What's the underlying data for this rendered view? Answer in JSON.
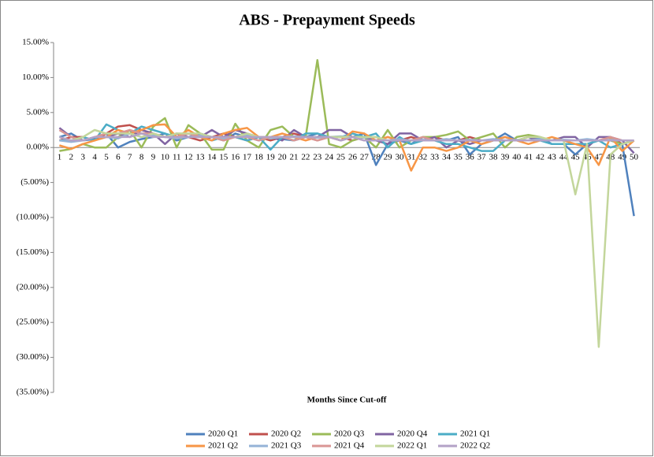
{
  "chart_data": {
    "type": "line",
    "title": "ABS - Prepayment Speeds",
    "x_label": "Months Since Cut-off",
    "categories": [
      1,
      2,
      3,
      4,
      5,
      6,
      7,
      8,
      9,
      10,
      11,
      12,
      13,
      14,
      15,
      16,
      17,
      18,
      19,
      20,
      21,
      22,
      23,
      24,
      25,
      26,
      27,
      28,
      29,
      30,
      31,
      32,
      33,
      34,
      35,
      36,
      37,
      38,
      39,
      40,
      41,
      42,
      43,
      44,
      45,
      46,
      47,
      48,
      49,
      50
    ],
    "ylim": [
      -35,
      15
    ],
    "yticks": [
      {
        "value": 15,
        "label": "15.00%"
      },
      {
        "value": 10,
        "label": "10.00%"
      },
      {
        "value": 5,
        "label": "5.00%"
      },
      {
        "value": 0,
        "label": "0.00%"
      },
      {
        "value": -5,
        "label": "(5.00%)"
      },
      {
        "value": -10,
        "label": "(10.00%)"
      },
      {
        "value": -15,
        "label": "(15.00%)"
      },
      {
        "value": -20,
        "label": "(20.00%)"
      },
      {
        "value": -25,
        "label": "(25.00%)"
      },
      {
        "value": -30,
        "label": "(30.00%)"
      },
      {
        "value": -35,
        "label": "(35.00%)"
      }
    ],
    "grid": false,
    "legend": "bottom",
    "series": [
      {
        "name": "2020 Q1",
        "color": "#4f81bd",
        "values": [
          1.5,
          2.0,
          1.0,
          1.2,
          2.0,
          0.0,
          0.8,
          1.2,
          1.5,
          2.0,
          1.0,
          1.5,
          2.0,
          1.5,
          1.0,
          2.0,
          1.5,
          1.0,
          1.5,
          1.2,
          1.0,
          1.5,
          2.0,
          1.5,
          1.0,
          1.5,
          2.0,
          -2.5,
          0.5,
          1.0,
          0.5,
          1.5,
          1.0,
          1.0,
          1.5,
          -1.0,
          0.5,
          1.0,
          2.0,
          1.0,
          1.0,
          1.5,
          0.5,
          0.5,
          -1.0,
          0.5,
          1.0,
          1.0,
          0.5,
          -9.8
        ]
      },
      {
        "name": "2020 Q2",
        "color": "#c0504d",
        "values": [
          1.0,
          1.5,
          1.5,
          1.0,
          2.0,
          3.0,
          3.2,
          2.5,
          2.0,
          1.5,
          2.0,
          1.5,
          1.0,
          1.5,
          2.0,
          1.5,
          1.0,
          1.5,
          1.0,
          1.5,
          2.0,
          1.5,
          1.0,
          1.5,
          1.5,
          1.0,
          1.5,
          1.0,
          1.5,
          1.0,
          1.5,
          1.0,
          1.5,
          1.0,
          1.0,
          1.5,
          1.0,
          1.0,
          1.5,
          1.0,
          1.5,
          1.0,
          1.0,
          1.0,
          1.0,
          1.0,
          1.0,
          1.5,
          0.5,
          1.0
        ]
      },
      {
        "name": "2020 Q3",
        "color": "#9bbb59",
        "values": [
          -0.5,
          -0.2,
          0.5,
          0.0,
          0.0,
          1.5,
          2.5,
          0.0,
          3.0,
          4.2,
          0.0,
          3.2,
          2.0,
          -0.3,
          -0.3,
          3.4,
          1.0,
          0.0,
          2.5,
          3.0,
          1.5,
          1.5,
          12.5,
          0.5,
          0.0,
          1.0,
          1.5,
          0.0,
          2.5,
          0.0,
          1.0,
          1.5,
          1.5,
          1.8,
          2.3,
          1.0,
          1.5,
          2.0,
          0.0,
          1.5,
          1.8,
          1.5,
          1.0,
          1.0,
          1.0,
          1.0,
          1.0,
          1.0,
          0.5,
          1.0
        ]
      },
      {
        "name": "2020 Q4",
        "color": "#8064a2",
        "values": [
          2.8,
          1.5,
          1.0,
          1.5,
          1.5,
          2.0,
          1.5,
          2.5,
          2.0,
          0.5,
          2.0,
          1.5,
          1.5,
          2.5,
          1.5,
          2.5,
          2.0,
          1.5,
          1.5,
          1.0,
          2.5,
          1.5,
          1.5,
          2.5,
          2.5,
          1.5,
          1.5,
          1.0,
          0.5,
          2.0,
          2.0,
          1.0,
          1.5,
          0.0,
          1.0,
          0.5,
          1.0,
          1.0,
          1.5,
          1.0,
          1.5,
          1.0,
          1.0,
          1.5,
          1.5,
          0.0,
          1.5,
          1.5,
          1.0,
          -0.8
        ]
      },
      {
        "name": "2021 Q1",
        "color": "#4bacc6",
        "values": [
          1.0,
          1.0,
          1.5,
          1.0,
          3.3,
          2.5,
          2.0,
          3.0,
          2.5,
          2.0,
          1.5,
          2.0,
          1.5,
          1.0,
          1.5,
          1.5,
          1.0,
          1.5,
          -0.3,
          1.5,
          1.0,
          2.0,
          2.0,
          1.5,
          1.5,
          2.0,
          1.5,
          2.0,
          0.0,
          1.5,
          0.5,
          1.0,
          1.0,
          0.5,
          0.5,
          0.0,
          -0.5,
          -0.5,
          1.0,
          1.0,
          1.0,
          1.0,
          0.5,
          0.5,
          0.5,
          0.5,
          1.0,
          0.0,
          0.5,
          1.0
        ]
      },
      {
        "name": "2021 Q2",
        "color": "#f79646",
        "values": [
          0.3,
          -0.2,
          0.5,
          1.0,
          1.5,
          2.5,
          2.0,
          2.5,
          3.2,
          3.3,
          1.5,
          2.5,
          1.5,
          1.0,
          2.0,
          2.5,
          2.8,
          1.5,
          1.5,
          2.0,
          1.5,
          1.0,
          1.5,
          1.5,
          1.0,
          2.3,
          2.0,
          1.0,
          1.5,
          1.0,
          -3.3,
          0.0,
          0.0,
          -0.5,
          0.0,
          1.0,
          0.5,
          1.0,
          1.5,
          1.0,
          0.5,
          1.0,
          1.5,
          1.0,
          0.5,
          0.0,
          -2.5,
          1.5,
          -0.5,
          1.0
        ]
      },
      {
        "name": "2021 Q3",
        "color": "#95b3d7",
        "values": [
          1.0,
          0.8,
          1.0,
          1.5,
          1.5,
          1.3,
          2.0,
          1.5,
          1.7,
          1.5,
          1.3,
          1.5,
          1.7,
          1.5,
          1.3,
          1.5,
          1.7,
          1.5,
          1.3,
          1.5,
          1.6,
          1.5,
          1.4,
          1.5,
          1.6,
          1.5,
          1.4,
          1.5,
          1.0,
          1.2,
          1.0,
          1.1,
          1.0,
          1.2,
          1.0,
          1.1,
          1.0,
          1.2,
          1.0,
          1.1,
          1.0,
          1.2,
          1.0,
          1.1,
          1.0,
          1.2,
          1.0,
          1.1,
          1.0,
          1.0
        ]
      },
      {
        "name": "2021 Q4",
        "color": "#d99694",
        "values": [
          2.5,
          1.5,
          1.0,
          1.5,
          2.0,
          2.0,
          2.5,
          2.0,
          2.0,
          1.5,
          1.5,
          2.0,
          1.5,
          1.5,
          1.0,
          1.5,
          1.5,
          1.0,
          1.5,
          1.5,
          1.0,
          1.5,
          1.0,
          1.5,
          1.0,
          1.5,
          1.0,
          1.0,
          1.0,
          1.0,
          1.0,
          1.5,
          1.0,
          1.0,
          1.0,
          1.0,
          1.0,
          1.0,
          1.0,
          1.0,
          1.0,
          1.0,
          1.0,
          1.0,
          1.0,
          1.0,
          1.0,
          1.5,
          1.0,
          1.0
        ]
      },
      {
        "name": "2022 Q1",
        "color": "#c3d69b",
        "values": [
          1.5,
          1.0,
          1.5,
          2.5,
          2.0,
          2.0,
          2.0,
          1.5,
          2.0,
          1.5,
          2.0,
          2.0,
          2.0,
          1.5,
          1.5,
          1.5,
          2.0,
          1.5,
          1.5,
          1.5,
          1.5,
          1.5,
          1.5,
          1.5,
          1.5,
          1.5,
          1.5,
          1.5,
          1.0,
          1.0,
          1.0,
          1.0,
          1.0,
          1.0,
          1.0,
          1.0,
          1.0,
          1.0,
          1.0,
          1.0,
          1.5,
          1.5,
          1.0,
          1.0,
          -6.7,
          0.5,
          -28.5,
          -1.0,
          0.5,
          1.0
        ]
      },
      {
        "name": "2022 Q2",
        "color": "#b3a2c7",
        "values": [
          1.5,
          1.0,
          1.0,
          1.5,
          1.5,
          1.5,
          1.5,
          2.0,
          1.5,
          1.5,
          1.5,
          1.5,
          1.5,
          1.5,
          1.5,
          1.5,
          1.5,
          1.5,
          1.5,
          1.5,
          1.5,
          1.5,
          1.5,
          1.5,
          1.0,
          1.5,
          1.0,
          1.0,
          1.0,
          1.0,
          1.0,
          1.0,
          1.0,
          1.0,
          1.0,
          1.0,
          1.0,
          1.0,
          1.0,
          1.0,
          1.0,
          1.0,
          1.0,
          1.0,
          1.0,
          1.0,
          1.0,
          1.0,
          1.0,
          1.0
        ]
      }
    ]
  }
}
